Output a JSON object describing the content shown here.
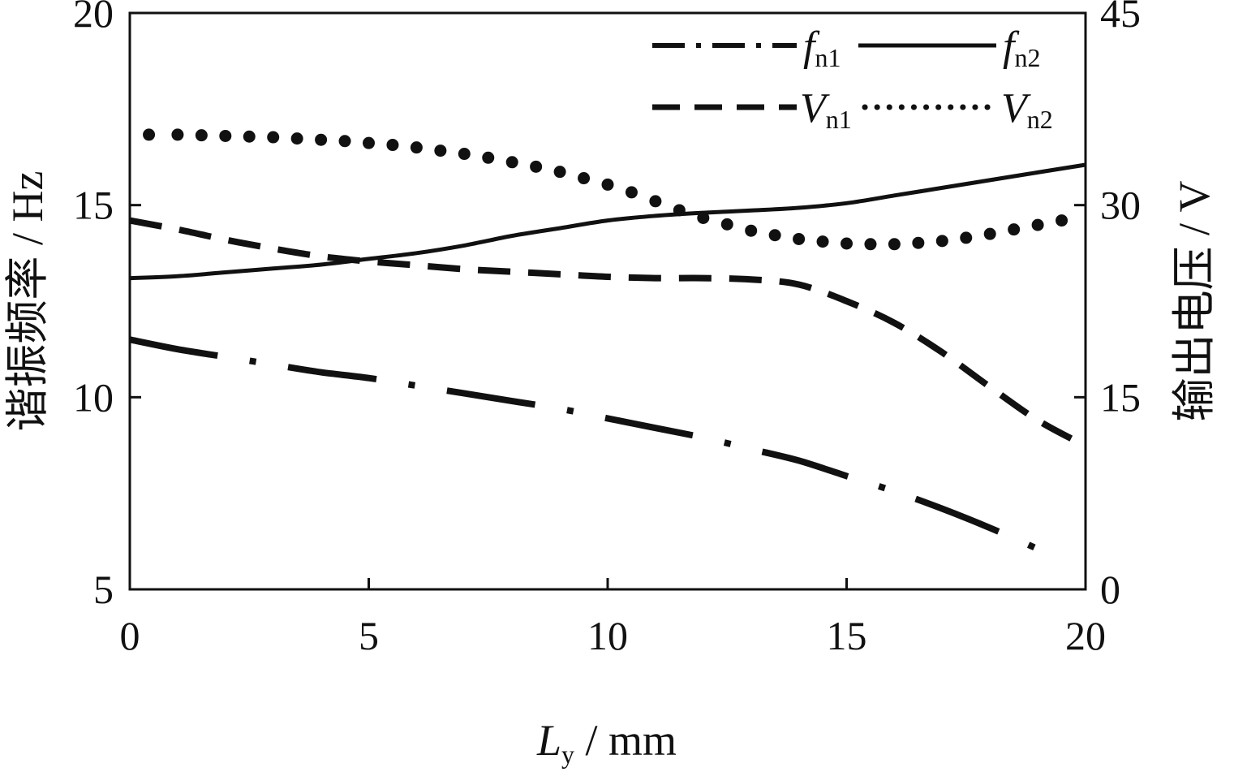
{
  "chart_data": {
    "type": "line",
    "xlabel_main": "L",
    "xlabel_sub": "y",
    "xlabel_unit": " / mm",
    "ylabel": "谐振频率 / Hz",
    "y2label": "输出电压 / V",
    "xlim": [
      0,
      20
    ],
    "ylim": [
      5,
      20
    ],
    "y2lim": [
      0,
      45
    ],
    "xticks": [
      "0",
      "5",
      "10",
      "15",
      "20"
    ],
    "yticks": [
      "5",
      "10",
      "15",
      "20"
    ],
    "y2ticks": [
      "0",
      "15",
      "30",
      "45"
    ],
    "grid": false,
    "legend_position": "top-right",
    "series": [
      {
        "name_main": "f",
        "name_sub": "n1",
        "axis": "left",
        "style": "dash-dot",
        "x": [
          0,
          1,
          2,
          3,
          4,
          5,
          6,
          7,
          8,
          9,
          10,
          11,
          12,
          13,
          14,
          15,
          16,
          17,
          18,
          19,
          19.5
        ],
        "y": [
          11.5,
          11.25,
          11.05,
          10.85,
          10.65,
          10.5,
          10.3,
          10.1,
          9.9,
          9.7,
          9.45,
          9.2,
          8.95,
          8.65,
          8.35,
          7.95,
          7.55,
          7.1,
          6.6,
          6.05,
          5.75
        ]
      },
      {
        "name_main": "f",
        "name_sub": "n2",
        "axis": "left",
        "style": "solid",
        "x": [
          0,
          1,
          2,
          3,
          4,
          5,
          6,
          7,
          8,
          9,
          10,
          11,
          12,
          13,
          14,
          15,
          16,
          17,
          18,
          19,
          20
        ],
        "y": [
          13.1,
          13.15,
          13.25,
          13.35,
          13.45,
          13.6,
          13.75,
          13.95,
          14.2,
          14.4,
          14.6,
          14.72,
          14.8,
          14.86,
          14.93,
          15.05,
          15.25,
          15.45,
          15.65,
          15.85,
          16.05
        ]
      },
      {
        "name_main": "V",
        "name_sub": "n1",
        "axis": "right",
        "style": "dashed",
        "x": [
          0,
          1,
          2,
          3,
          4,
          5,
          6,
          7,
          8,
          9,
          10,
          11,
          12,
          13,
          14,
          15,
          16,
          17,
          18,
          19,
          20
        ],
        "y": [
          28.8,
          28.1,
          27.3,
          26.6,
          26.0,
          25.6,
          25.3,
          25.0,
          24.8,
          24.6,
          24.4,
          24.3,
          24.3,
          24.2,
          23.8,
          22.5,
          20.8,
          18.5,
          15.8,
          13.2,
          11.2
        ]
      },
      {
        "name_main": "V",
        "name_sub": "n2",
        "axis": "right",
        "style": "dotted",
        "x": [
          0.4,
          1,
          1.5,
          2,
          2.5,
          3,
          3.5,
          4,
          4.5,
          5,
          5.5,
          6,
          6.5,
          7,
          7.5,
          8,
          8.5,
          9,
          9.5,
          10,
          10.5,
          11,
          11.5,
          12,
          12.5,
          13,
          13.5,
          14,
          14.5,
          15,
          15.5,
          16,
          16.5,
          17,
          17.5,
          18,
          18.5,
          19,
          19.5
        ],
        "y": [
          35.5,
          35.5,
          35.45,
          35.4,
          35.35,
          35.3,
          35.2,
          35.1,
          35.0,
          34.85,
          34.7,
          34.5,
          34.25,
          34.0,
          33.7,
          33.35,
          33.0,
          32.6,
          32.1,
          31.6,
          31.0,
          30.3,
          29.6,
          29.0,
          28.5,
          28.0,
          27.65,
          27.35,
          27.15,
          27.0,
          26.95,
          26.95,
          27.05,
          27.2,
          27.45,
          27.75,
          28.1,
          28.45,
          28.8
        ]
      }
    ]
  }
}
